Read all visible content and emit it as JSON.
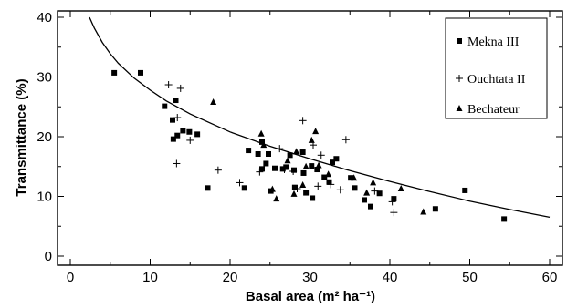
{
  "chart_data": {
    "type": "scatter",
    "xlabel": "Basal area (m² ha⁻¹)",
    "ylabel": "Transmittance (%)",
    "xlim": [
      0,
      60
    ],
    "ylim": [
      0,
      40
    ],
    "x_ticks": [
      0,
      10,
      20,
      30,
      40,
      50,
      60
    ],
    "y_ticks": [
      0,
      10,
      20,
      30,
      40
    ],
    "legend_position": "top-right",
    "series": [
      {
        "name": "Mekna III",
        "marker": "square",
        "points": [
          [
            5.5,
            30.7
          ],
          [
            8.8,
            30.7
          ],
          [
            11.8,
            25.1
          ],
          [
            12.8,
            22.8
          ],
          [
            13.2,
            26.1
          ],
          [
            12.9,
            19.6
          ],
          [
            13.4,
            20.2
          ],
          [
            14.1,
            21.0
          ],
          [
            14.9,
            20.8
          ],
          [
            15.9,
            20.4
          ],
          [
            17.2,
            11.4
          ],
          [
            21.8,
            11.4
          ],
          [
            22.3,
            17.7
          ],
          [
            23.5,
            17.1
          ],
          [
            24.0,
            19.1
          ],
          [
            24.0,
            14.6
          ],
          [
            24.5,
            15.5
          ],
          [
            24.8,
            17.1
          ],
          [
            25.1,
            10.9
          ],
          [
            25.6,
            14.7
          ],
          [
            26.6,
            14.6
          ],
          [
            27.0,
            14.9
          ],
          [
            27.5,
            16.9
          ],
          [
            28.1,
            11.5
          ],
          [
            28.0,
            14.4
          ],
          [
            29.1,
            17.4
          ],
          [
            29.2,
            13.9
          ],
          [
            29.5,
            10.6
          ],
          [
            30.2,
            15.1
          ],
          [
            30.3,
            9.7
          ],
          [
            30.9,
            14.5
          ],
          [
            31.8,
            13.2
          ],
          [
            32.4,
            12.4
          ],
          [
            32.8,
            15.7
          ],
          [
            33.3,
            16.3
          ],
          [
            35.1,
            13.1
          ],
          [
            35.6,
            11.4
          ],
          [
            36.8,
            9.4
          ],
          [
            37.6,
            8.3
          ],
          [
            38.7,
            10.5
          ],
          [
            40.5,
            9.6
          ],
          [
            45.7,
            7.9
          ],
          [
            49.4,
            11.0
          ],
          [
            54.3,
            6.2
          ]
        ]
      },
      {
        "name": "Ouchtata II",
        "marker": "cross",
        "points": [
          [
            12.3,
            28.7
          ],
          [
            13.8,
            28.1
          ],
          [
            13.4,
            23.2
          ],
          [
            15.0,
            19.4
          ],
          [
            13.3,
            15.5
          ],
          [
            18.5,
            14.4
          ],
          [
            21.2,
            12.3
          ],
          [
            23.7,
            14.1
          ],
          [
            26.2,
            18.0
          ],
          [
            26.8,
            14.5
          ],
          [
            27.9,
            14.2
          ],
          [
            28.4,
            11.3
          ],
          [
            29.1,
            22.7
          ],
          [
            30.4,
            18.6
          ],
          [
            31.0,
            11.7
          ],
          [
            31.4,
            16.9
          ],
          [
            32.6,
            12.0
          ],
          [
            34.5,
            19.5
          ],
          [
            33.8,
            11.1
          ],
          [
            38.1,
            10.9
          ],
          [
            40.3,
            9.1
          ],
          [
            40.5,
            7.3
          ]
        ]
      },
      {
        "name": "Bechateur",
        "marker": "triangle",
        "points": [
          [
            17.9,
            25.8
          ],
          [
            23.9,
            20.5
          ],
          [
            24.2,
            18.6
          ],
          [
            25.3,
            11.2
          ],
          [
            25.8,
            9.6
          ],
          [
            27.2,
            16.0
          ],
          [
            28.0,
            10.4
          ],
          [
            28.3,
            17.5
          ],
          [
            29.1,
            11.9
          ],
          [
            29.5,
            15.0
          ],
          [
            30.2,
            19.4
          ],
          [
            30.7,
            20.9
          ],
          [
            31.1,
            15.2
          ],
          [
            32.3,
            13.7
          ],
          [
            35.5,
            13.1
          ],
          [
            37.1,
            10.6
          ],
          [
            37.9,
            12.3
          ],
          [
            41.4,
            11.3
          ],
          [
            44.2,
            7.4
          ]
        ]
      }
    ],
    "fit_curve": {
      "description_in_chart": "",
      "points": [
        [
          2.4,
          40.0
        ],
        [
          3,
          38.2
        ],
        [
          4,
          35.8
        ],
        [
          5,
          33.9
        ],
        [
          6,
          32.3
        ],
        [
          8,
          29.8
        ],
        [
          10,
          27.8
        ],
        [
          12,
          26.0
        ],
        [
          15,
          23.8
        ],
        [
          20,
          20.8
        ],
        [
          25,
          18.4
        ],
        [
          30,
          16.3
        ],
        [
          35,
          14.3
        ],
        [
          40,
          12.5
        ],
        [
          45,
          10.8
        ],
        [
          50,
          9.2
        ],
        [
          55,
          7.8
        ],
        [
          60,
          6.5
        ]
      ]
    }
  }
}
